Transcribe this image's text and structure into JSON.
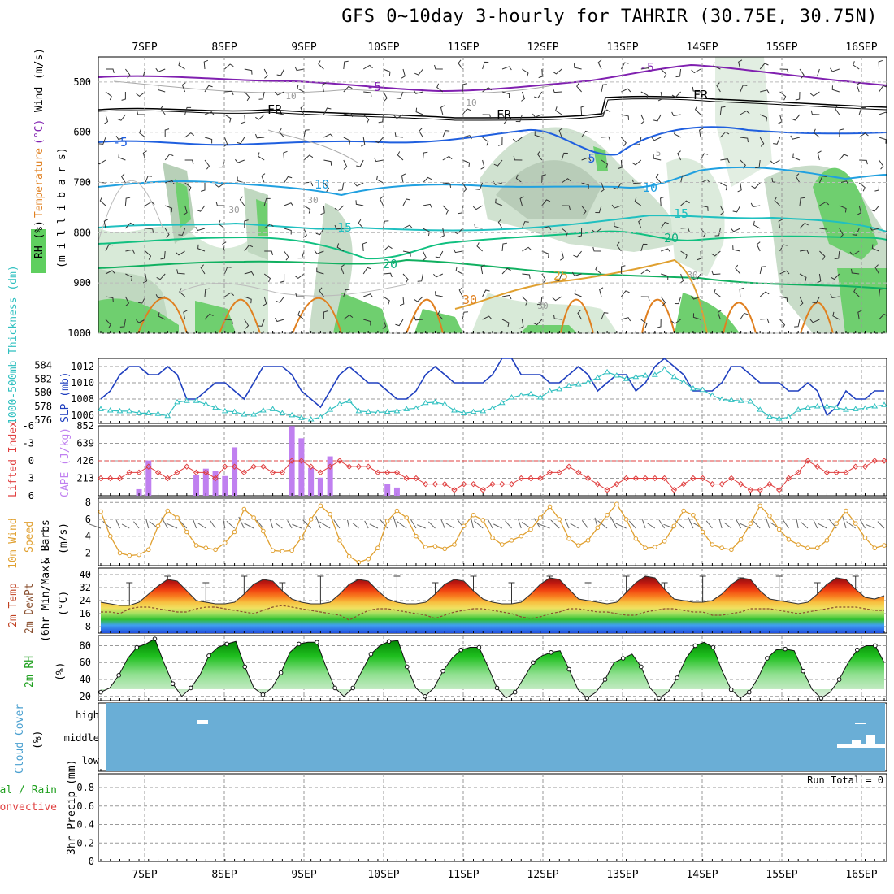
{
  "title": "GFS 0~10day 3-hourly for TAHRIR (30.75E, 30.75N)",
  "dates": [
    "7SEP",
    "8SEP",
    "9SEP",
    "10SEP",
    "11SEP",
    "12SEP",
    "13SEP",
    "14SEP",
    "15SEP",
    "16SEP"
  ],
  "colors": {
    "rh_green": "#5fcf5f",
    "rh_light": "#eaf4ea",
    "slp": "#1f3fbf",
    "thickness": "#30c0c0",
    "cape": "#c080f0",
    "lifted": "#e04040",
    "wind_speed": "#e0a030",
    "barb": "#333333",
    "cloud_bg": "#6aaed6",
    "purple": "#8020b0",
    "blue": "#1f5fdf",
    "teal": "#10b0b0",
    "orange": "#e08020"
  },
  "panels": {
    "upper": {
      "ylabel_parts": [
        "RH (%)",
        "Temperature",
        "(°C)",
        "Wind",
        "(m/s)",
        "(m i l l i b a r s)"
      ],
      "ticks": [
        "500",
        "600",
        "700",
        "800",
        "900",
        "1000"
      ],
      "contour_labels": [
        "-5",
        "-5",
        "FR",
        "FR",
        "FR",
        "-5",
        "5",
        "10",
        "10",
        "15",
        "15",
        "20",
        "20",
        "25",
        "30",
        "30",
        "30",
        "30",
        "30",
        "10",
        "10",
        "5"
      ]
    },
    "slp": {
      "ylabel_left": "1000-500mb Thickness (dm)",
      "ylabel_right": "SLP (mb)",
      "left_ticks": [
        "584",
        "582",
        "580",
        "578",
        "576"
      ],
      "right_ticks": [
        "1012",
        "1010",
        "1008",
        "1006"
      ]
    },
    "cape": {
      "ylabel_left": "Lifted Index",
      "ylabel_right": "CAPE (J/kg)",
      "left_ticks": [
        "-6",
        "-3",
        "0",
        "3",
        "6"
      ],
      "right_ticks": [
        "852",
        "639",
        "426",
        "213"
      ]
    },
    "wind": {
      "ylabel_parts": [
        "10m Wind",
        "Speed",
        "& Barbs",
        "(m/s)"
      ],
      "ticks": [
        "8",
        "6",
        "4",
        "2"
      ]
    },
    "temp": {
      "ylabel_parts": [
        "2m Temp",
        "2m DewPt",
        "(6hr Min/Max)",
        "(°C)"
      ],
      "ticks": [
        "40",
        "32",
        "24",
        "16",
        "8"
      ]
    },
    "rh": {
      "ylabel_parts": [
        "2m RH",
        "(%)"
      ],
      "ticks": [
        "80",
        "60",
        "40",
        "20"
      ]
    },
    "cloud": {
      "ylabel_parts": [
        "Cloud Cover",
        "(%)"
      ],
      "ticks": [
        "high",
        "middle",
        "low"
      ]
    },
    "precip": {
      "ylabel_parts": [
        "Total / Rain",
        "Convective",
        "3hr Precip (mm)"
      ],
      "ticks": [
        "0.8",
        "0.6",
        "0.4",
        "0.2",
        "0"
      ],
      "run_total": "Run Total = 0"
    }
  },
  "chart_data": [
    {
      "type": "line",
      "title": "SLP (mb)",
      "series": [
        {
          "name": "SLP",
          "unit": "mb",
          "values": [
            1008,
            1009,
            1011,
            1012,
            1012,
            1011,
            1011,
            1012,
            1011,
            1008,
            1008,
            1009,
            1010,
            1010,
            1009,
            1008,
            1010,
            1012,
            1012,
            1012,
            1011,
            1009,
            1008,
            1007,
            1009,
            1011,
            1012,
            1011,
            1010,
            1010,
            1009,
            1008,
            1008,
            1009,
            1011,
            1012,
            1011,
            1010,
            1010,
            1010,
            1010,
            1011,
            1013,
            1013,
            1011,
            1011,
            1011,
            1010,
            1010,
            1011,
            1012,
            1011,
            1009,
            1010,
            1011,
            1011,
            1009,
            1010,
            1012,
            1013,
            1012,
            1011,
            1009,
            1009,
            1009,
            1010,
            1012,
            1012,
            1011,
            1010,
            1010,
            1010,
            1009,
            1009,
            1010,
            1009,
            1006,
            1007,
            1009,
            1008,
            1008,
            1009,
            1009
          ]
        }
      ],
      "ylim": [
        1005,
        1013
      ]
    },
    {
      "type": "line",
      "title": "1000-500mb Thickness (dm)",
      "series": [
        {
          "name": "Thickness",
          "unit": "dm",
          "values": [
            577.6,
            577.4,
            577.3,
            577.3,
            577.0,
            577.0,
            576.9,
            576.6,
            578.6,
            578.8,
            578.8,
            578.3,
            577.8,
            577.3,
            577.2,
            576.8,
            576.8,
            577.4,
            577.6,
            577.0,
            576.7,
            576.3,
            576.1,
            576.4,
            577.5,
            578.3,
            578.8,
            577.3,
            577.2,
            577.1,
            577.2,
            577.3,
            577.6,
            577.7,
            578.5,
            578.6,
            578.3,
            577.4,
            577.0,
            577.2,
            577.3,
            577.7,
            578.5,
            579.3,
            579.6,
            579.8,
            579.3,
            580.2,
            580.5,
            581.0,
            581.2,
            581.5,
            582.2,
            583.0,
            582.5,
            582.0,
            582.3,
            582.5,
            582.6,
            583.4,
            582.3,
            581.5,
            580.6,
            580.4,
            579.6,
            579.0,
            578.9,
            578.8,
            578.7,
            577.5,
            576.5,
            576.2,
            576.4,
            577.5,
            577.8,
            578.0,
            578.0,
            577.8,
            577.5,
            577.6,
            577.7,
            578.0,
            578.2
          ]
        }
      ],
      "ylim": [
        575.5,
        585
      ]
    },
    {
      "type": "bar",
      "title": "CAPE (J/kg)",
      "categories": [
        "7SEP",
        "7SEP_03",
        "7SEP_06",
        "7SEP_09",
        "7SEP_12",
        "7SEP_15",
        "7SEP_18",
        "7SEP_21",
        "8SEP",
        "8SEP_03",
        "8SEP_06",
        "8SEP_09",
        "8SEP_12",
        "8SEP_15",
        "8SEP_18",
        "8SEP_21",
        "9SEP",
        "9SEP_03",
        "9SEP_06",
        "9SEP_09",
        "9SEP_12",
        "9SEP_15",
        "9SEP_18",
        "9SEP_21",
        "10SEP",
        "10SEP_03",
        "10SEP_06",
        "10SEP_09",
        "10SEP_12",
        "10SEP_15",
        "10SEP_18",
        "10SEP_21",
        "11SEP",
        "11SEP_03",
        "11SEP_06",
        "11SEP_09",
        "11SEP_12",
        "11SEP_15",
        "11SEP_18",
        "11SEP_21",
        "12SEP",
        "12SEP_03",
        "12SEP_06",
        "12SEP_09",
        "12SEP_12",
        "12SEP_15",
        "12SEP_18",
        "12SEP_21",
        "13SEP",
        "13SEP_03",
        "13SEP_06",
        "13SEP_09",
        "13SEP_12",
        "13SEP_15",
        "13SEP_18",
        "13SEP_21",
        "14SEP",
        "14SEP_03",
        "14SEP_06",
        "14SEP_09",
        "14SEP_12",
        "14SEP_15",
        "14SEP_18",
        "14SEP_21",
        "15SEP",
        "15SEP_03",
        "15SEP_06",
        "15SEP_09",
        "15SEP_12",
        "15SEP_15",
        "15SEP_18",
        "15SEP_21",
        "16SEP",
        "16SEP_03",
        "16SEP_06",
        "16SEP_09",
        "16SEP_12",
        "16SEP_15",
        "16SEP_18",
        "16SEP_21",
        "17SEP",
        "17SEP_03",
        "17SEP_06"
      ],
      "values": [
        0,
        0,
        0,
        0,
        80,
        430,
        0,
        0,
        0,
        0,
        250,
        330,
        300,
        240,
        590,
        0,
        0,
        0,
        0,
        0,
        850,
        700,
        340,
        220,
        480,
        0,
        0,
        0,
        0,
        0,
        140,
        100,
        0,
        0,
        0,
        0,
        0,
        0,
        0,
        0,
        0,
        0,
        0,
        0,
        0,
        0,
        0,
        0,
        0,
        0,
        0,
        0,
        0,
        0,
        0,
        0,
        0,
        0,
        0,
        0,
        0,
        0,
        0,
        0,
        0,
        0,
        0,
        0,
        0,
        0,
        0,
        0,
        0,
        0,
        0,
        0,
        0,
        0,
        0,
        0,
        0,
        0,
        0
      ],
      "ylim": [
        0,
        852
      ]
    },
    {
      "type": "line",
      "title": "Lifted Index",
      "series": [
        {
          "name": "Lifted Index",
          "values": [
            3,
            3,
            3,
            2,
            2,
            1,
            2,
            3,
            2,
            1,
            2,
            2,
            3,
            1,
            1,
            2,
            1,
            1,
            2,
            2,
            0,
            0,
            1,
            2,
            1,
            0,
            1,
            1,
            1,
            2,
            2,
            2,
            3,
            3,
            4,
            4,
            4,
            5,
            4,
            4,
            5,
            4,
            4,
            4,
            3,
            3,
            3,
            2,
            2,
            1,
            2,
            3,
            4,
            5,
            4,
            3,
            3,
            3,
            3,
            3,
            5,
            4,
            3,
            3,
            4,
            4,
            3,
            4,
            5,
            5,
            4,
            5,
            3,
            2,
            0,
            1,
            2,
            2,
            2,
            1,
            1,
            0,
            0
          ]
        }
      ],
      "ylim": [
        6,
        -6
      ]
    },
    {
      "type": "line",
      "title": "10m Wind Speed (m/s)",
      "series": [
        {
          "name": "Wind Speed",
          "unit": "m/s",
          "values": [
            6.9,
            4,
            2,
            1.7,
            1.8,
            2.4,
            5.2,
            7,
            6.2,
            4.5,
            2.9,
            2.6,
            2.4,
            3.2,
            4.5,
            7.2,
            6.2,
            4.6,
            2.3,
            2.2,
            2.3,
            3.8,
            6,
            7.6,
            6.6,
            3.5,
            1.6,
            0.9,
            1.3,
            2.6,
            5.8,
            7,
            6.2,
            4,
            2.7,
            2.8,
            2.5,
            3,
            5.2,
            6.5,
            5.9,
            3.8,
            3,
            3.5,
            4,
            4.8,
            6.2,
            7.5,
            6,
            3.7,
            2.9,
            3.5,
            5,
            6.5,
            7.8,
            6,
            3.7,
            2.6,
            2.7,
            3.4,
            5.2,
            7,
            6.5,
            4.5,
            3,
            2.6,
            2.4,
            3.6,
            5.5,
            7.6,
            6.4,
            4.8,
            3.6,
            3,
            2.6,
            2.6,
            3.5,
            5.5,
            7,
            5.5,
            3.8,
            2.6,
            2.9
          ]
        }
      ],
      "ylim": [
        0.5,
        8.5
      ]
    },
    {
      "type": "area",
      "title": "2m Temp (°C)",
      "series": [
        {
          "name": "2m Temp",
          "unit": "°C",
          "values": [
            23,
            22,
            21,
            21,
            23,
            28,
            33,
            37,
            36,
            30,
            24,
            23,
            22,
            22,
            23,
            28,
            34,
            37,
            36,
            30,
            25,
            23,
            22,
            22,
            23,
            28,
            34,
            37,
            36,
            30,
            25,
            23,
            22,
            22,
            23,
            28,
            34,
            37,
            36,
            30,
            25,
            23,
            22,
            22,
            23,
            28,
            34,
            38,
            37,
            31,
            25,
            24,
            23,
            22,
            23,
            29,
            35,
            39,
            38,
            31,
            25,
            24,
            23,
            23,
            24,
            28,
            34,
            38,
            37,
            30,
            25,
            24,
            23,
            22,
            23,
            28,
            34,
            38,
            37,
            31,
            26,
            25,
            27
          ]
        },
        {
          "name": "2m DewPt",
          "unit": "°C",
          "values": [
            17,
            17,
            16,
            19,
            20,
            20,
            19,
            18,
            17,
            17,
            19,
            20,
            20,
            19,
            18,
            17,
            16,
            18,
            20,
            21,
            20,
            19,
            18,
            17,
            16,
            15,
            12,
            15,
            18,
            19,
            19,
            18,
            17,
            16,
            15,
            13,
            15,
            17,
            18,
            19,
            19,
            18,
            17,
            16,
            14,
            13,
            14,
            16,
            17,
            19,
            19,
            18,
            17,
            17,
            16,
            15,
            15,
            17,
            18,
            19,
            19,
            18,
            17,
            17,
            15,
            15,
            16,
            17,
            19,
            19,
            19,
            18,
            17,
            16,
            17,
            18,
            19,
            20,
            20,
            20,
            19,
            18,
            18
          ]
        }
      ],
      "ylim": [
        4,
        44
      ]
    },
    {
      "type": "area",
      "title": "2m RH (%)",
      "series": [
        {
          "name": "2m RH",
          "unit": "%",
          "values": [
            25,
            30,
            45,
            65,
            78,
            82,
            88,
            60,
            35,
            20,
            30,
            45,
            68,
            78,
            82,
            85,
            55,
            30,
            22,
            30,
            48,
            72,
            82,
            84,
            84,
            55,
            30,
            20,
            30,
            50,
            70,
            80,
            85,
            86,
            55,
            30,
            20,
            30,
            50,
            65,
            75,
            78,
            78,
            55,
            30,
            18,
            25,
            42,
            60,
            68,
            72,
            74,
            52,
            28,
            18,
            25,
            40,
            60,
            65,
            70,
            55,
            30,
            18,
            25,
            42,
            65,
            80,
            84,
            78,
            50,
            28,
            18,
            25,
            42,
            65,
            75,
            76,
            74,
            50,
            28,
            18,
            25,
            40,
            60,
            75,
            80,
            80,
            60
          ]
        }
      ],
      "ylim": [
        15,
        92
      ]
    },
    {
      "type": "bar",
      "title": "3hr Precip (mm)",
      "categories": [
        "7SEP",
        "8SEP",
        "9SEP",
        "10SEP",
        "11SEP",
        "12SEP",
        "13SEP",
        "14SEP",
        "15SEP",
        "16SEP"
      ],
      "values": [
        0,
        0,
        0,
        0,
        0,
        0,
        0,
        0,
        0,
        0
      ],
      "ylim": [
        0,
        0.95
      ]
    }
  ]
}
